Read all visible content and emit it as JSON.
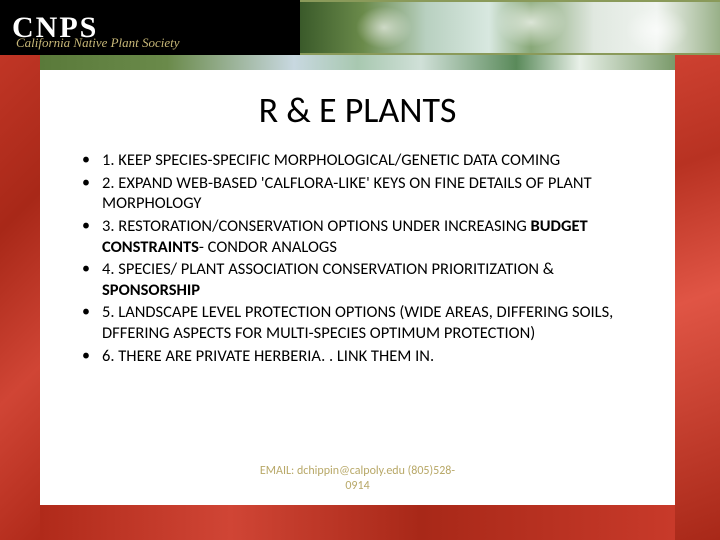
{
  "header": {
    "logo_main": "CNPS",
    "logo_sub": "California Native Plant Society"
  },
  "slide": {
    "title": "R & E PLANTS",
    "bullets": [
      {
        "pre": "1. KEEP SPECIES-SPECIFIC MORPHOLOGICAL/GENETIC DATA COMING",
        "bold": "",
        "post": ""
      },
      {
        "pre": "2. EXPAND WEB-BASED 'CALFLORA-LIKE' KEYS ON FINE DETAILS OF PLANT MORPHOLOGY",
        "bold": "",
        "post": ""
      },
      {
        "pre": "3. RESTORATION/CONSERVATION OPTIONS UNDER INCREASING ",
        "bold": "BUDGET CONSTRAINTS",
        "post": "- CONDOR ANALOGS"
      },
      {
        "pre": "4. SPECIES/ PLANT ASSOCIATION CONSERVATION PRIORITIZATION & ",
        "bold": "SPONSORSHIP",
        "post": ""
      },
      {
        "pre": "5. LANDSCAPE LEVEL PROTECTION OPTIONS (WIDE AREAS, DIFFERING SOILS, DFFERING ASPECTS FOR MULTI-SPECIES OPTIMUM PROTECTION)",
        "bold": "",
        "post": ""
      },
      {
        "pre": "6. THERE ARE PRIVATE HERBERIA. . LINK THEM IN.",
        "bold": "",
        "post": ""
      }
    ],
    "footer_line1": "EMAIL: dchippin@calpoly.edu (805)528-",
    "footer_line2": "0914"
  },
  "colors": {
    "title_color": "#000000",
    "text_color": "#000000",
    "footer_color": "#b8a868",
    "bg_white": "#ffffff"
  },
  "typography": {
    "title_fontsize": 36,
    "body_fontsize": 16.5,
    "footer_fontsize": 12
  }
}
